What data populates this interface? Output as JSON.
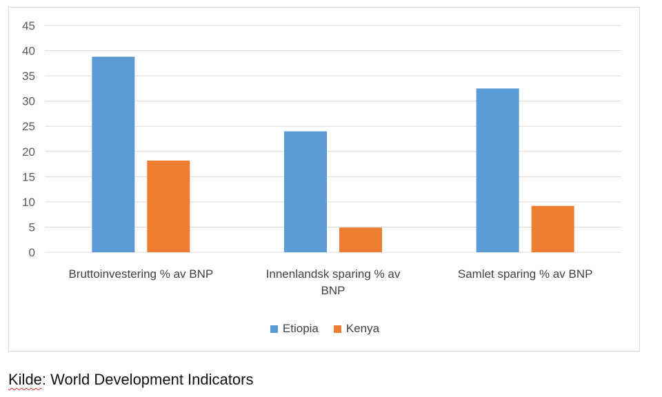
{
  "chart_data": {
    "type": "bar",
    "categories": [
      [
        "Bruttoinvestering % av BNP"
      ],
      [
        "Innenlandsk sparing % av",
        "BNP"
      ],
      [
        "Samlet sparing % av BNP"
      ]
    ],
    "series": [
      {
        "name": "Etiopia",
        "color": "#5b9bd5",
        "values": [
          38.8,
          24.0,
          32.5
        ]
      },
      {
        "name": "Kenya",
        "color": "#ed7d31",
        "values": [
          18.2,
          4.9,
          9.2
        ]
      }
    ],
    "ylim": [
      0,
      45
    ],
    "yticks": [
      "0",
      "5",
      "10",
      "15",
      "20",
      "25",
      "30",
      "35",
      "40",
      "45"
    ],
    "grid": true,
    "legend_position": "bottom"
  },
  "source": {
    "label": "Kilde",
    "sep": ": ",
    "text": "World Development Indicators"
  }
}
